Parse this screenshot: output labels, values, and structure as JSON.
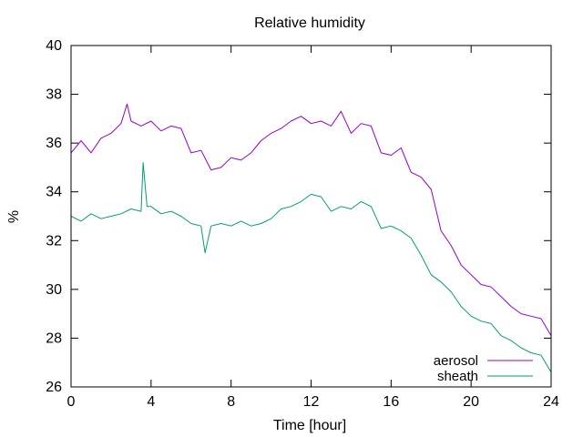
{
  "chart_data": {
    "type": "line",
    "title": "Relative humidity",
    "xlabel": "Time [hour]",
    "ylabel": "%",
    "xlim": [
      0,
      24
    ],
    "ylim": [
      26,
      40
    ],
    "xticks": [
      0,
      4,
      8,
      12,
      16,
      20,
      24
    ],
    "yticks": [
      26,
      28,
      30,
      32,
      34,
      36,
      38,
      40
    ],
    "grid": false,
    "legend_position": "bottom-right",
    "series": [
      {
        "name": "aerosol",
        "color": "#9400d3",
        "x": [
          0,
          0.5,
          1,
          1.5,
          2,
          2.5,
          2.8,
          3,
          3.5,
          4,
          4.5,
          5,
          5.5,
          6,
          6.5,
          7,
          7.5,
          8,
          8.5,
          9,
          9.5,
          10,
          10.5,
          11,
          11.5,
          12,
          12.5,
          13,
          13.5,
          14,
          14.5,
          15,
          15.5,
          16,
          16.5,
          17,
          17.5,
          18,
          18.5,
          19,
          19.5,
          20,
          20.5,
          21,
          21.5,
          22,
          22.5,
          23,
          23.5,
          24
        ],
        "y": [
          35.6,
          36.1,
          35.6,
          36.2,
          36.4,
          36.8,
          37.6,
          36.9,
          36.7,
          36.9,
          36.5,
          36.7,
          36.6,
          35.6,
          35.7,
          34.9,
          35.0,
          35.4,
          35.3,
          35.6,
          36.1,
          36.4,
          36.6,
          36.9,
          37.1,
          36.8,
          36.9,
          36.7,
          37.3,
          36.4,
          36.8,
          36.7,
          35.6,
          35.5,
          35.8,
          34.8,
          34.6,
          34.1,
          32.4,
          31.8,
          31.0,
          30.6,
          30.2,
          30.1,
          29.7,
          29.3,
          29.0,
          28.9,
          28.8,
          28.1
        ]
      },
      {
        "name": "sheath",
        "color": "#009e73",
        "x": [
          0,
          0.5,
          1,
          1.5,
          2,
          2.5,
          3,
          3.5,
          3.6,
          3.8,
          4,
          4.5,
          5,
          5.5,
          6,
          6.5,
          6.7,
          7,
          7.5,
          8,
          8.5,
          9,
          9.5,
          10,
          10.5,
          11,
          11.5,
          12,
          12.5,
          13,
          13.5,
          14,
          14.5,
          15,
          15.5,
          16,
          16.5,
          17,
          17.5,
          18,
          18.5,
          19,
          19.5,
          20,
          20.5,
          21,
          21.5,
          22,
          22.5,
          23,
          23.5,
          24
        ],
        "y": [
          33.0,
          32.8,
          33.1,
          32.9,
          33.0,
          33.1,
          33.3,
          33.2,
          35.2,
          33.4,
          33.4,
          33.1,
          33.2,
          33.0,
          32.7,
          32.6,
          31.5,
          32.6,
          32.7,
          32.6,
          32.8,
          32.6,
          32.7,
          32.9,
          33.3,
          33.4,
          33.6,
          33.9,
          33.8,
          33.2,
          33.4,
          33.3,
          33.6,
          33.4,
          32.5,
          32.6,
          32.4,
          32.1,
          31.4,
          30.6,
          30.3,
          29.9,
          29.3,
          28.9,
          28.7,
          28.6,
          28.1,
          27.9,
          27.6,
          27.4,
          27.3,
          26.6
        ]
      }
    ]
  }
}
